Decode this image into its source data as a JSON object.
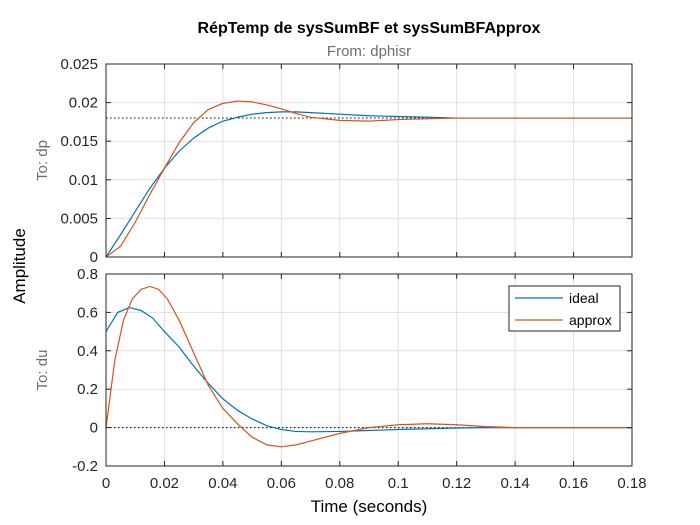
{
  "chart_data": {
    "type": "line",
    "title": "RépTemp de sysSumBF et sysSumBFApprox",
    "subtitle": "From: dphisr",
    "xlabel": "Time (seconds)",
    "ylabel": "Amplitude",
    "xlim": [
      0,
      0.18
    ],
    "xticks": [
      0,
      0.02,
      0.04,
      0.06,
      0.08,
      0.1,
      0.12,
      0.14,
      0.16,
      0.18
    ],
    "xtick_labels": [
      "0",
      "0.02",
      "0.04",
      "0.06",
      "0.08",
      "0.1",
      "0.12",
      "0.14",
      "0.16",
      "0.18"
    ],
    "grid": true,
    "legend": {
      "position": "top-right",
      "entries": [
        "ideal",
        "approx"
      ]
    },
    "colors": {
      "ideal": "#0072bd",
      "approx": "#d95319"
    },
    "panels": [
      {
        "row_label": "To: dp",
        "ylim": [
          0,
          0.025
        ],
        "yticks": [
          0,
          0.005,
          0.01,
          0.015,
          0.02,
          0.025
        ],
        "ytick_labels": [
          "0",
          "0.005",
          "0.01",
          "0.015",
          "0.02",
          "0.025"
        ],
        "reference_value": 0.018,
        "series": [
          {
            "name": "ideal",
            "x": [
              0,
              0.005,
              0.01,
              0.015,
              0.02,
              0.025,
              0.03,
              0.035,
              0.04,
              0.045,
              0.05,
              0.055,
              0.06,
              0.065,
              0.07,
              0.08,
              0.09,
              0.1,
              0.11,
              0.12,
              0.13,
              0.14,
              0.16,
              0.18
            ],
            "y": [
              0,
              0.0029,
              0.0059,
              0.0089,
              0.0115,
              0.0137,
              0.0154,
              0.0167,
              0.0176,
              0.0181,
              0.0185,
              0.0187,
              0.0188,
              0.0188,
              0.0187,
              0.0185,
              0.0183,
              0.0182,
              0.0181,
              0.018,
              0.018,
              0.018,
              0.018,
              0.018
            ]
          },
          {
            "name": "approx",
            "x": [
              0,
              0.005,
              0.01,
              0.015,
              0.02,
              0.025,
              0.03,
              0.035,
              0.04,
              0.045,
              0.05,
              0.055,
              0.06,
              0.065,
              0.07,
              0.08,
              0.09,
              0.1,
              0.11,
              0.12,
              0.13,
              0.14,
              0.16,
              0.18
            ],
            "y": [
              0,
              0.0014,
              0.0045,
              0.0081,
              0.0115,
              0.0148,
              0.0174,
              0.0191,
              0.0199,
              0.0202,
              0.0201,
              0.0197,
              0.0192,
              0.0186,
              0.0181,
              0.0177,
              0.0176,
              0.0178,
              0.0179,
              0.018,
              0.018,
              0.018,
              0.018,
              0.018
            ]
          }
        ]
      },
      {
        "row_label": "To: du",
        "ylim": [
          -0.2,
          0.8
        ],
        "yticks": [
          -0.2,
          0,
          0.2,
          0.4,
          0.6,
          0.8
        ],
        "ytick_labels": [
          "-0.2",
          "0",
          "0.2",
          "0.4",
          "0.6",
          "0.8"
        ],
        "reference_value": 0,
        "series": [
          {
            "name": "ideal",
            "x": [
              0,
              0.004,
              0.008,
              0.012,
              0.016,
              0.02,
              0.025,
              0.03,
              0.035,
              0.04,
              0.045,
              0.05,
              0.055,
              0.06,
              0.065,
              0.07,
              0.08,
              0.09,
              0.1,
              0.11,
              0.12,
              0.13,
              0.14,
              0.16,
              0.18
            ],
            "y": [
              0.5,
              0.6,
              0.625,
              0.61,
              0.57,
              0.5,
              0.42,
              0.32,
              0.23,
              0.15,
              0.09,
              0.045,
              0.01,
              -0.01,
              -0.02,
              -0.022,
              -0.02,
              -0.015,
              -0.01,
              -0.006,
              -0.002,
              0,
              0,
              0,
              0
            ]
          },
          {
            "name": "approx",
            "x": [
              0,
              0.003,
              0.006,
              0.009,
              0.012,
              0.015,
              0.018,
              0.021,
              0.025,
              0.03,
              0.035,
              0.04,
              0.045,
              0.05,
              0.055,
              0.06,
              0.065,
              0.07,
              0.08,
              0.09,
              0.1,
              0.11,
              0.12,
              0.13,
              0.14,
              0.16,
              0.18
            ],
            "y": [
              0,
              0.35,
              0.56,
              0.67,
              0.72,
              0.735,
              0.72,
              0.67,
              0.56,
              0.39,
              0.22,
              0.1,
              0.02,
              -0.05,
              -0.09,
              -0.1,
              -0.09,
              -0.07,
              -0.03,
              0,
              0.015,
              0.02,
              0.015,
              0.005,
              0,
              0,
              0
            ]
          }
        ]
      }
    ]
  }
}
